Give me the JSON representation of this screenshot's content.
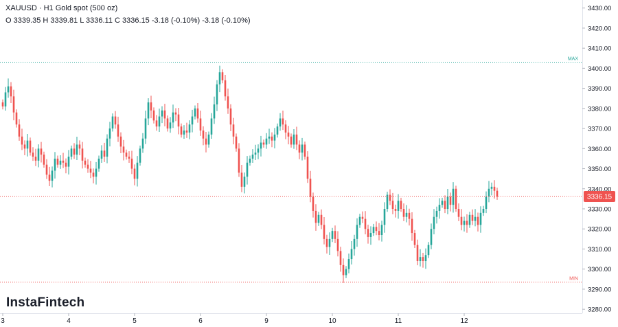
{
  "header": {
    "title": "XAUUSD · H1 Gold spot (500 oz)",
    "ohlc": "O 3339.35 H 3339.81 L 3336.11 C 3336.15 -3.18 (-0.10%) -3.18 (-0.10%)"
  },
  "logo": "InstaFintech",
  "chart_data": {
    "type": "candlestick",
    "x_tick_labels": [
      "3",
      "4",
      "5",
      "6",
      "9",
      "10",
      "11",
      "12"
    ],
    "y_ticks": [
      3280,
      3290,
      3300,
      3310,
      3320,
      3330,
      3340,
      3350,
      3360,
      3370,
      3380,
      3390,
      3400,
      3410,
      3420,
      3430
    ],
    "y_tick_labels": [
      "3280.00",
      "3290.00",
      "3300.00",
      "3310.00",
      "3320.00",
      "3330.00",
      "3340.00",
      "3350.00",
      "3360.00",
      "3370.00",
      "3380.00",
      "3390.00",
      "3400.00",
      "3410.00",
      "3420.00",
      "3430.00"
    ],
    "ylim": [
      3278,
      3434
    ],
    "last_price": 3336.15,
    "last_price_label": "3336.15",
    "max_line": {
      "label": "MAX",
      "value": 3403
    },
    "min_line": {
      "label": "MIN",
      "value": 3293.5
    },
    "colors": {
      "up": "#26a69a",
      "down": "#ef5350",
      "max": "#26a69a",
      "min": "#ef5350",
      "last": "#ef5350"
    },
    "closes": [
      3381,
      3388,
      3391,
      3386,
      3378,
      3372,
      3366,
      3362,
      3360,
      3364,
      3358,
      3356,
      3354,
      3360,
      3357,
      3352,
      3347,
      3344,
      3349,
      3355,
      3352,
      3354,
      3353,
      3351,
      3356,
      3360,
      3357,
      3362,
      3360,
      3354,
      3352,
      3350,
      3348,
      3346,
      3350,
      3355,
      3359,
      3356,
      3365,
      3370,
      3376,
      3372,
      3366,
      3361,
      3358,
      3356,
      3355,
      3350,
      3345,
      3353,
      3360,
      3365,
      3375,
      3383,
      3379,
      3374,
      3371,
      3376,
      3379,
      3375,
      3370,
      3373,
      3378,
      3377,
      3371,
      3367,
      3369,
      3368,
      3372,
      3376,
      3380,
      3375,
      3369,
      3365,
      3362,
      3367,
      3375,
      3382,
      3392,
      3398,
      3394,
      3386,
      3380,
      3372,
      3366,
      3360,
      3348,
      3341,
      3346,
      3353,
      3355,
      3357,
      3358,
      3360,
      3363,
      3362,
      3365,
      3366,
      3364,
      3367,
      3371,
      3375,
      3372,
      3368,
      3366,
      3362,
      3367,
      3362,
      3358,
      3362,
      3356,
      3345,
      3336,
      3329,
      3323,
      3327,
      3322,
      3315,
      3311,
      3315,
      3319,
      3315,
      3309,
      3302,
      3297,
      3300,
      3305,
      3310,
      3315,
      3322,
      3326,
      3325,
      3320,
      3316,
      3318,
      3321,
      3319,
      3317,
      3322,
      3330,
      3337,
      3334,
      3330,
      3329,
      3334,
      3330,
      3326,
      3328,
      3325,
      3318,
      3312,
      3304,
      3306,
      3304,
      3307,
      3312,
      3320,
      3326,
      3329,
      3332,
      3334,
      3330,
      3336,
      3332,
      3340,
      3330,
      3326,
      3322,
      3324,
      3322,
      3327,
      3324,
      3326,
      3322,
      3328,
      3330,
      3336,
      3340,
      3341,
      3339,
      3336
    ]
  }
}
